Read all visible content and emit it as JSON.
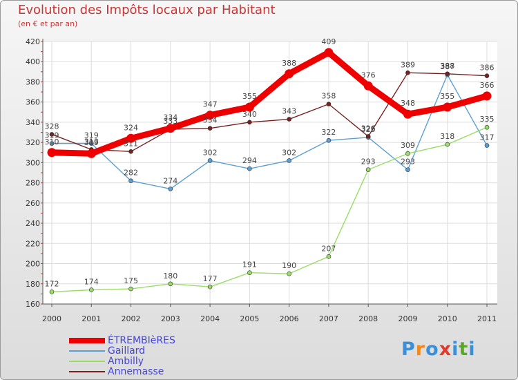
{
  "header": {
    "title": "Evolution des Impôts locaux par Habitant",
    "subtitle": "(en € et par an)"
  },
  "logo": {
    "letters": [
      "P",
      "r",
      "o",
      "x",
      "i",
      "t",
      "i"
    ],
    "colors": [
      "#3a8fd8",
      "#f08a1c",
      "#3a8fd8",
      "#e23a2a",
      "#3a8fd8",
      "#5aa82a",
      "#3a8fd8"
    ]
  },
  "chart_data": {
    "type": "line",
    "title": "Evolution des Impôts locaux par Habitant",
    "subtitle": "(en € et par an)",
    "xlabel": "",
    "ylabel": "",
    "categories": [
      "2000",
      "2001",
      "2002",
      "2003",
      "2004",
      "2005",
      "2006",
      "2007",
      "2008",
      "2009",
      "2010",
      "2011"
    ],
    "ylim": [
      160,
      420
    ],
    "yticks": [
      160,
      180,
      200,
      220,
      240,
      260,
      280,
      300,
      320,
      340,
      360,
      380,
      400,
      420
    ],
    "grid": true,
    "legend_position": "bottom-left",
    "series": [
      {
        "name": "ÉTREMBIèRES",
        "color": "#ee0000",
        "emphasis": true,
        "values": [
          310,
          309,
          324,
          334,
          347,
          355,
          388,
          409,
          376,
          348,
          355,
          366
        ]
      },
      {
        "name": "Gaillard",
        "color": "#5a9fd4",
        "emphasis": false,
        "values": [
          319,
          319,
          282,
          274,
          302,
          294,
          302,
          322,
          325,
          293,
          387,
          317
        ]
      },
      {
        "name": "Ambilly",
        "color": "#99dd66",
        "emphasis": false,
        "values": [
          172,
          174,
          175,
          180,
          177,
          191,
          190,
          207,
          293,
          309,
          318,
          335
        ]
      },
      {
        "name": "Annemasse",
        "color": "#772222",
        "emphasis": false,
        "values": [
          328,
          313,
          311,
          333,
          334,
          340,
          343,
          358,
          326,
          389,
          388,
          386
        ]
      }
    ]
  }
}
